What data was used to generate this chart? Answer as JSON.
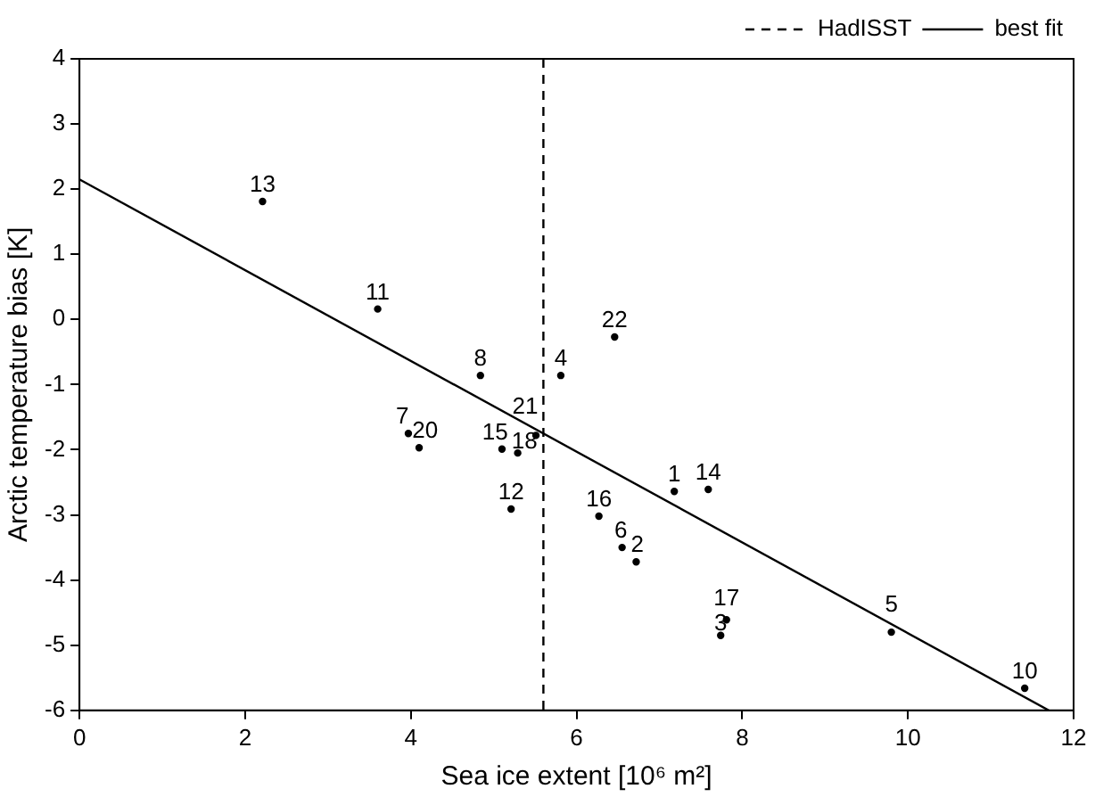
{
  "chart_data": {
    "type": "scatter",
    "xlabel": "Sea ice extent [10⁶ m²]",
    "ylabel": "Arctic temperature bias [K]",
    "xlim": [
      0,
      12
    ],
    "xticks": [
      0,
      2,
      4,
      6,
      8,
      10,
      12
    ],
    "ylim": [
      -6,
      4
    ],
    "yticks": [
      -6,
      -5,
      -4,
      -3,
      -2,
      -1,
      0,
      1,
      2,
      3,
      4
    ],
    "grid": false,
    "legend": "top right",
    "marker": "circle",
    "series": [
      {
        "type": "scatter",
        "name": "1",
        "color": "#000000",
        "x": [
          7.18
        ],
        "values": [
          -2.64
        ]
      },
      {
        "type": "scatter",
        "name": "2",
        "color": "#000000",
        "x": [
          6.72
        ],
        "values": [
          -3.72
        ]
      },
      {
        "type": "scatter",
        "name": "3",
        "color": "#000000",
        "x": [
          7.74
        ],
        "values": [
          -4.85
        ]
      },
      {
        "type": "scatter",
        "name": "4",
        "color": "#000000",
        "x": [
          5.81
        ],
        "values": [
          -0.86
        ]
      },
      {
        "type": "scatter",
        "name": "5",
        "color": "#000000",
        "x": [
          9.8
        ],
        "values": [
          -4.8
        ]
      },
      {
        "type": "scatter",
        "name": "6",
        "color": "#000000",
        "x": [
          6.55
        ],
        "values": [
          -3.5
        ]
      },
      {
        "type": "scatter",
        "name": "7",
        "color": "#000000",
        "x": [
          3.97
        ],
        "values": [
          -1.75
        ]
      },
      {
        "type": "scatter",
        "name": "8",
        "color": "#000000",
        "x": [
          4.84
        ],
        "values": [
          -0.86
        ]
      },
      {
        "type": "scatter",
        "name": "10",
        "color": "#000000",
        "x": [
          11.41
        ],
        "values": [
          -5.66
        ]
      },
      {
        "type": "scatter",
        "name": "11",
        "color": "#000000",
        "x": [
          3.6
        ],
        "values": [
          0.16
        ]
      },
      {
        "type": "scatter",
        "name": "12",
        "color": "#000000",
        "x": [
          5.21
        ],
        "values": [
          -2.91
        ]
      },
      {
        "type": "scatter",
        "name": "13",
        "color": "#000000",
        "x": [
          2.21
        ],
        "values": [
          1.81
        ]
      },
      {
        "type": "scatter",
        "name": "14",
        "color": "#000000",
        "x": [
          7.59
        ],
        "values": [
          -2.61
        ]
      },
      {
        "type": "scatter",
        "name": "15",
        "color": "#000000",
        "x": [
          5.1
        ],
        "values": [
          -1.99
        ]
      },
      {
        "type": "scatter",
        "name": "16",
        "color": "#000000",
        "x": [
          6.27
        ],
        "values": [
          -3.02
        ]
      },
      {
        "type": "scatter",
        "name": "17",
        "color": "#000000",
        "x": [
          7.81
        ],
        "values": [
          -4.61
        ]
      },
      {
        "type": "scatter",
        "name": "18",
        "color": "#000000",
        "x": [
          5.29
        ],
        "values": [
          -2.05
        ]
      },
      {
        "type": "scatter",
        "name": "20",
        "color": "#000000",
        "x": [
          4.1
        ],
        "values": [
          -1.97
        ]
      },
      {
        "type": "scatter",
        "name": "21",
        "color": "#000000",
        "x": [
          5.51
        ],
        "values": [
          -1.78
        ]
      },
      {
        "type": "scatter",
        "name": "22",
        "color": "#000000",
        "x": [
          6.46
        ],
        "values": [
          -0.27
        ]
      },
      {
        "type": "line",
        "name": "best fit",
        "color": "#000000",
        "line_style": "solid",
        "marker": "none",
        "x": [
          0,
          11.7
        ],
        "values": [
          2.15,
          -6
        ]
      }
    ],
    "ref_lines": [
      {
        "axis": "x",
        "value": 5.6,
        "label": "HadISST",
        "color": "#000000",
        "line_style": "dashed"
      }
    ]
  }
}
